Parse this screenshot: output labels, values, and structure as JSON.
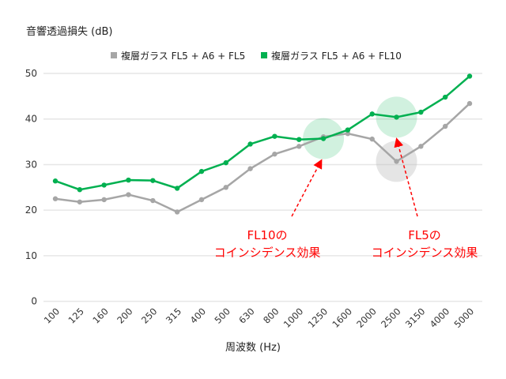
{
  "chart_data": {
    "type": "line",
    "title": "",
    "ylabel": "音響透過損失 (dB)",
    "xlabel": "周波数 (Hz)",
    "ylim": [
      0,
      50
    ],
    "yticks": [
      0,
      10,
      20,
      30,
      40,
      50
    ],
    "grid": true,
    "legend_position": "top-center",
    "categories": [
      "100",
      "125",
      "160",
      "200",
      "250",
      "315",
      "400",
      "500",
      "630",
      "800",
      "1000",
      "1250",
      "1600",
      "2000",
      "2500",
      "3150",
      "4000",
      "5000"
    ],
    "series": [
      {
        "name": "複層ガラス FL5 + A6 + FL5",
        "color": "#a6a6a6",
        "values": [
          22.5,
          21.8,
          22.3,
          23.4,
          22.1,
          19.6,
          22.3,
          25.0,
          29.1,
          32.3,
          34.0,
          36.1,
          36.8,
          35.6,
          30.7,
          34.0,
          38.4,
          43.4
        ]
      },
      {
        "name": "複層ガラス FL5 + A6 + FL10",
        "color": "#00b050",
        "values": [
          26.4,
          24.5,
          25.5,
          26.6,
          26.5,
          24.8,
          28.5,
          30.4,
          34.5,
          36.2,
          35.5,
          35.7,
          37.6,
          41.1,
          40.4,
          41.5,
          44.8,
          49.4
        ]
      }
    ],
    "annotations": [
      {
        "line1": "FL10の",
        "line2": "コインシデンス効果",
        "color": "#ff0000",
        "category": "1250",
        "value": 35.7
      },
      {
        "line1": "FL5の",
        "line2": "コインシデンス効果",
        "color": "#ff0000",
        "category": "2500",
        "value": 40.4
      }
    ]
  }
}
